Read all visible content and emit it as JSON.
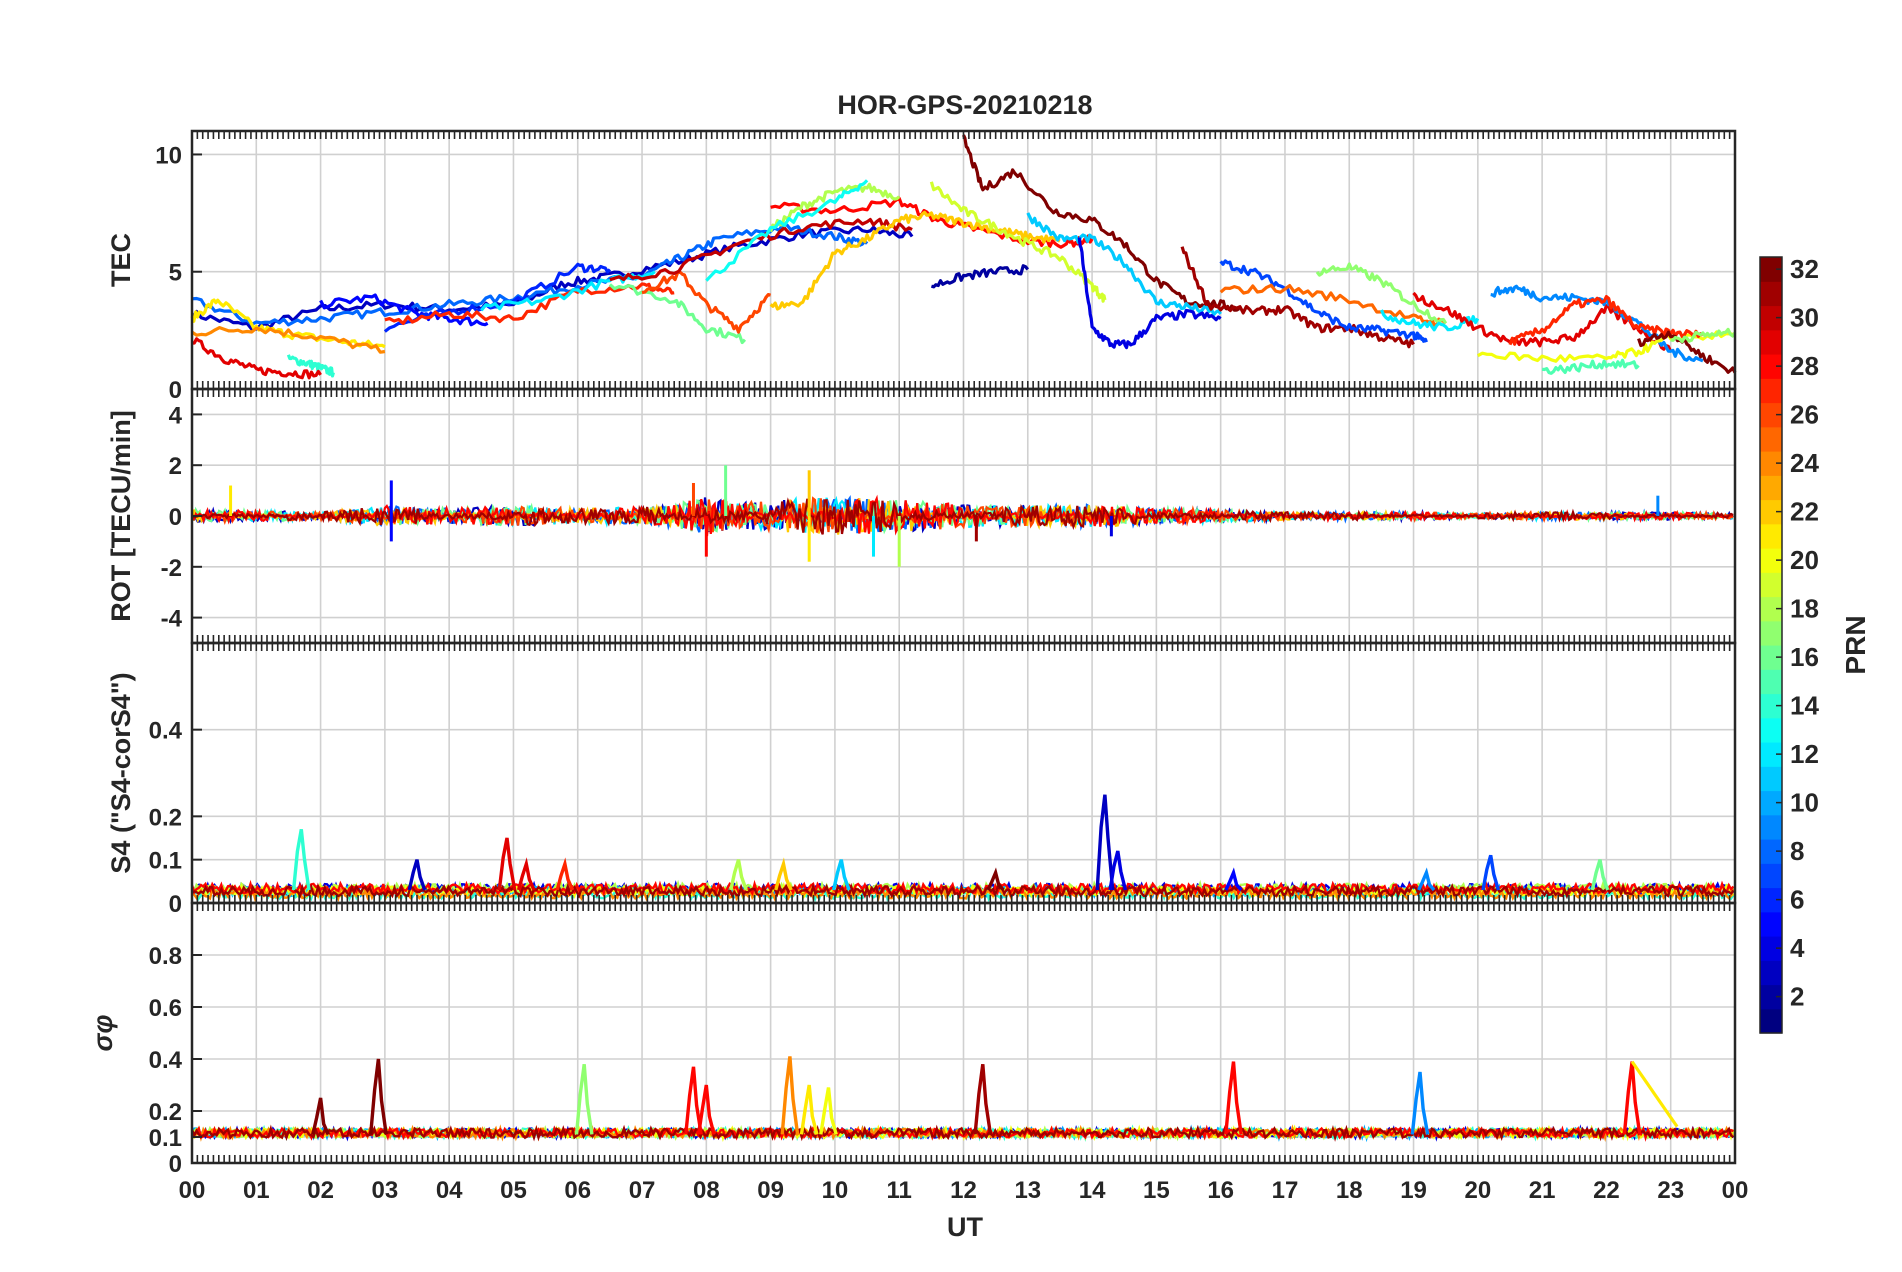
{
  "chart_data": {
    "type": "line",
    "title": "HOR-GPS-20210218",
    "xlabel": "UT",
    "x_ticks": [
      "00",
      "01",
      "02",
      "03",
      "04",
      "05",
      "06",
      "07",
      "08",
      "09",
      "10",
      "11",
      "12",
      "13",
      "14",
      "15",
      "16",
      "17",
      "18",
      "19",
      "20",
      "21",
      "22",
      "23",
      "00"
    ],
    "xlim": [
      0,
      24
    ],
    "grid": true,
    "colorbar": {
      "label": "PRN",
      "range": [
        1,
        32
      ],
      "ticks": [
        "2",
        "4",
        "6",
        "8",
        "10",
        "12",
        "14",
        "16",
        "18",
        "20",
        "22",
        "24",
        "26",
        "28",
        "30",
        "32"
      ],
      "colormap": "jet"
    },
    "panels": [
      {
        "id": "tec",
        "ylabel": "TEC",
        "ylim": [
          0,
          11
        ],
        "y_ticks": [
          "0",
          "5",
          "10"
        ],
        "series": [
          {
            "prn": 3,
            "x": [
              0,
              1,
              2,
              3,
              4,
              5,
              5.8,
              6.5,
              7.5,
              8.5,
              9.5,
              10.5,
              11.2
            ],
            "y": [
              3.2,
              2.6,
              3.4,
              3.6,
              3.4,
              3.6,
              4.5,
              4.8,
              5.4,
              6.1,
              6.6,
              6.8,
              6.5
            ]
          },
          {
            "prn": 8,
            "x": [
              0,
              1,
              2,
              3,
              4,
              5,
              6,
              7,
              7.6,
              8.2,
              9.2,
              10,
              10.5
            ],
            "y": [
              3.8,
              2.8,
              3.0,
              3.3,
              3.6,
              3.9,
              4.4,
              4.8,
              5.6,
              6.4,
              6.9,
              6.5,
              6.2
            ]
          },
          {
            "prn": 14,
            "x": [
              1.5,
              1.8,
              2.0,
              2.2
            ],
            "y": [
              1.3,
              1.1,
              0.9,
              0.7
            ]
          },
          {
            "prn": 29,
            "x": [
              0,
              0.5,
              1.0,
              1.5,
              2.0
            ],
            "y": [
              2.1,
              1.3,
              0.8,
              0.7,
              0.6
            ]
          },
          {
            "prn": 21,
            "x": [
              0,
              0.4,
              1.0,
              1.6,
              2.4,
              3.0
            ],
            "y": [
              3.0,
              3.8,
              2.6,
              2.3,
              2.0,
              1.8
            ]
          },
          {
            "prn": 24,
            "x": [
              0,
              1,
              2,
              3
            ],
            "y": [
              2.4,
              2.6,
              2.2,
              1.6
            ]
          },
          {
            "prn": 5,
            "x": [
              2.0,
              2.8,
              3.5,
              4.0,
              4.6
            ],
            "y": [
              3.6,
              3.9,
              3.2,
              3.0,
              2.8
            ]
          },
          {
            "prn": 6,
            "x": [
              3.0,
              4.0,
              5.0,
              6.0,
              6.5
            ],
            "y": [
              2.6,
              3.3,
              3.7,
              5.2,
              5.1
            ]
          },
          {
            "prn": 27,
            "x": [
              3.0,
              4.0,
              5.0,
              6.0,
              7.0,
              7.5
            ],
            "y": [
              2.8,
              3.2,
              3.0,
              4.2,
              4.4,
              4.1
            ]
          },
          {
            "prn": 12,
            "x": [
              4.5,
              5.5,
              6.5,
              7.2
            ],
            "y": [
              3.4,
              3.8,
              4.6,
              5.0
            ]
          },
          {
            "prn": 16,
            "x": [
              6.5,
              7.5,
              8.0,
              8.6
            ],
            "y": [
              4.5,
              3.8,
              2.6,
              2.1
            ]
          },
          {
            "prn": 26,
            "x": [
              7.0,
              7.6,
              8.0,
              8.5,
              9.0
            ],
            "y": [
              4.2,
              4.9,
              3.6,
              2.6,
              4.0
            ]
          },
          {
            "prn": 30,
            "x": [
              6.5,
              7.5,
              8.5,
              9.5,
              10.5,
              11.2
            ],
            "y": [
              4.6,
              5.1,
              6.2,
              6.9,
              7.2,
              6.8
            ]
          },
          {
            "prn": 28,
            "x": [
              9.0,
              10.0,
              11.0,
              11.6,
              12.2,
              13.0,
              13.6,
              14.0
            ],
            "y": [
              7.8,
              7.6,
              8.0,
              7.2,
              6.8,
              6.3,
              6.2,
              6.4
            ]
          },
          {
            "prn": 18,
            "x": [
              9.0,
              9.5,
              10.0,
              10.5,
              11.0
            ],
            "y": [
              6.8,
              7.8,
              8.4,
              8.6,
              8.2
            ]
          },
          {
            "prn": 13,
            "x": [
              8.0,
              9.0,
              10.0,
              10.5
            ],
            "y": [
              4.6,
              6.8,
              8.0,
              8.9
            ]
          },
          {
            "prn": 22,
            "x": [
              9.0,
              9.5,
              10.0,
              10.5,
              11.0,
              11.5,
              12.0,
              12.5,
              13.0,
              13.5
            ],
            "y": [
              3.5,
              3.7,
              5.8,
              6.4,
              7.2,
              7.4,
              7.1,
              6.8,
              6.5,
              6.3
            ]
          },
          {
            "prn": 19,
            "x": [
              11.5,
              12.0,
              12.5,
              13.0,
              13.5,
              14.0,
              14.2
            ],
            "y": [
              8.7,
              7.6,
              6.9,
              6.2,
              5.6,
              4.4,
              3.8
            ]
          },
          {
            "prn": 2,
            "x": [
              11.5,
              12.0,
              12.5,
              13.0
            ],
            "y": [
              4.4,
              4.8,
              5.0,
              5.1
            ]
          },
          {
            "prn": 32,
            "x": [
              12.0,
              12.3,
              12.8,
              13.4,
              14.0,
              14.5,
              15.0,
              15.5,
              16.0,
              16.3
            ],
            "y": [
              10.7,
              8.5,
              9.3,
              7.6,
              7.2,
              6.2,
              4.6,
              3.7,
              3.6,
              3.4
            ]
          },
          {
            "prn": 11,
            "x": [
              13.0,
              13.5,
              14.0,
              14.5,
              15.0,
              15.5,
              16.0
            ],
            "y": [
              7.4,
              6.4,
              6.4,
              5.4,
              3.7,
              3.5,
              3.2
            ]
          },
          {
            "prn": 4,
            "x": [
              13.8,
              14.0,
              14.3,
              14.6,
              15.0,
              15.5,
              16.0
            ],
            "y": [
              6.5,
              2.6,
              1.9,
              1.9,
              3.0,
              3.2,
              3.0
            ]
          },
          {
            "prn": 31,
            "x": [
              15.4,
              15.8,
              16.5,
              17.0,
              17.5,
              18.0,
              18.5,
              19.0
            ],
            "y": [
              6.0,
              3.6,
              3.3,
              3.4,
              2.6,
              2.6,
              2.2,
              1.9
            ]
          },
          {
            "prn": 7,
            "x": [
              16.0,
              16.5,
              17.0,
              17.5,
              18.0,
              18.5,
              19.0,
              19.2
            ],
            "y": [
              5.4,
              5.0,
              4.3,
              3.3,
              2.6,
              2.5,
              2.3,
              2.0
            ]
          },
          {
            "prn": 25,
            "x": [
              16.0,
              17.0,
              18.0,
              19.0,
              19.5
            ],
            "y": [
              4.2,
              4.3,
              3.8,
              3.0,
              2.8
            ]
          },
          {
            "prn": 17,
            "x": [
              17.5,
              18.0,
              18.5,
              19.0,
              19.5
            ],
            "y": [
              5.0,
              5.2,
              4.6,
              3.6,
              2.8
            ]
          },
          {
            "prn": 12,
            "x": [
              18.5,
              19.0,
              19.5,
              20.0
            ],
            "y": [
              3.2,
              2.8,
              2.6,
              3.0
            ]
          },
          {
            "prn": 29,
            "x": [
              19.0,
              19.5,
              20.0,
              20.5,
              21.0,
              21.5,
              22.0,
              22.5,
              23.0
            ],
            "y": [
              4.0,
              3.4,
              2.6,
              2.0,
              2.0,
              2.2,
              3.4,
              2.6,
              1.6
            ]
          },
          {
            "prn": 9,
            "x": [
              20.2,
              20.6,
              21.0,
              21.5,
              22.0,
              22.5,
              23.0,
              23.5
            ],
            "y": [
              4.1,
              4.3,
              3.9,
              3.9,
              3.7,
              2.8,
              1.6,
              1.2
            ]
          },
          {
            "prn": 15,
            "x": [
              21.0,
              21.5,
              22.0,
              22.5
            ],
            "y": [
              0.8,
              0.9,
              1.1,
              1.0
            ]
          },
          {
            "prn": 20,
            "x": [
              20.0,
              21.0,
              22.0,
              22.5,
              23.0,
              24.0
            ],
            "y": [
              1.5,
              1.3,
              1.3,
              1.6,
              2.2,
              2.3
            ]
          },
          {
            "prn": 27,
            "x": [
              20.5,
              21.0,
              21.5,
              22.0,
              22.5,
              23.0,
              23.5
            ],
            "y": [
              2.0,
              2.5,
              3.6,
              3.8,
              2.6,
              2.4,
              2.3
            ]
          },
          {
            "prn": 32,
            "x": [
              22.5,
              23.0,
              23.5,
              24.0
            ],
            "y": [
              2.0,
              2.4,
              1.4,
              0.7
            ]
          },
          {
            "prn": 17,
            "x": [
              23.0,
              23.5,
              24.0
            ],
            "y": [
              2.1,
              2.3,
              2.4
            ]
          }
        ]
      },
      {
        "id": "rot",
        "ylabel": "ROT [TECU/min]",
        "ylim": [
          -5,
          5
        ],
        "y_ticks": [
          "-4",
          "-2",
          "0",
          "2",
          "4"
        ],
        "noise_envelope": {
          "x": [
            0,
            2,
            3,
            4,
            5,
            6,
            7,
            7.5,
            8,
            8.5,
            9,
            10,
            11,
            12,
            13,
            14,
            15,
            16,
            17,
            18,
            19,
            20,
            21,
            22,
            23,
            24
          ],
          "amp": [
            0.5,
            0.3,
            0.8,
            0.6,
            0.8,
            0.6,
            0.7,
            0.9,
            1.6,
            1.0,
            1.2,
            1.5,
            1.3,
            0.9,
            0.8,
            0.9,
            0.6,
            0.5,
            0.3,
            0.3,
            0.3,
            0.2,
            0.3,
            0.3,
            0.3,
            0.2
          ]
        },
        "spikes": [
          {
            "x": 0.6,
            "y": 1.2,
            "prn": 21
          },
          {
            "x": 3.1,
            "y": 1.4,
            "prn": 5
          },
          {
            "x": 3.1,
            "y": -1.0,
            "prn": 5
          },
          {
            "x": 7.8,
            "y": 1.3,
            "prn": 26
          },
          {
            "x": 8.0,
            "y": -1.6,
            "prn": 28
          },
          {
            "x": 8.3,
            "y": 2.0,
            "prn": 16
          },
          {
            "x": 9.6,
            "y": 1.8,
            "prn": 22
          },
          {
            "x": 9.6,
            "y": -1.8,
            "prn": 21
          },
          {
            "x": 10.6,
            "y": -1.6,
            "prn": 12
          },
          {
            "x": 11.0,
            "y": -2.0,
            "prn": 18
          },
          {
            "x": 12.2,
            "y": -1.0,
            "prn": 31
          },
          {
            "x": 14.3,
            "y": -0.8,
            "prn": 4
          },
          {
            "x": 22.8,
            "y": 0.8,
            "prn": 9
          }
        ]
      },
      {
        "id": "s4",
        "ylabel": "S4 (\"S4-corS4\")",
        "ylim": [
          0,
          0.6
        ],
        "y_ticks": [
          "0",
          "0.1",
          "0.2",
          "0.4"
        ],
        "baseline": 0.03,
        "spikes": [
          {
            "x": 1.7,
            "y": 0.17,
            "prn": 14
          },
          {
            "x": 3.5,
            "y": 0.1,
            "prn": 3
          },
          {
            "x": 4.9,
            "y": 0.15,
            "prn": 29
          },
          {
            "x": 5.2,
            "y": 0.09,
            "prn": 29
          },
          {
            "x": 5.8,
            "y": 0.09,
            "prn": 27
          },
          {
            "x": 8.5,
            "y": 0.1,
            "prn": 18
          },
          {
            "x": 9.2,
            "y": 0.09,
            "prn": 22
          },
          {
            "x": 10.1,
            "y": 0.1,
            "prn": 11
          },
          {
            "x": 12.5,
            "y": 0.07,
            "prn": 32
          },
          {
            "x": 14.2,
            "y": 0.25,
            "prn": 3
          },
          {
            "x": 14.4,
            "y": 0.12,
            "prn": 4
          },
          {
            "x": 16.2,
            "y": 0.07,
            "prn": 5
          },
          {
            "x": 19.2,
            "y": 0.07,
            "prn": 9
          },
          {
            "x": 20.2,
            "y": 0.11,
            "prn": 7
          },
          {
            "x": 21.9,
            "y": 0.1,
            "prn": 16
          }
        ]
      },
      {
        "id": "sigma",
        "ylabel": "σφ",
        "ylim": [
          0,
          1
        ],
        "y_ticks": [
          "0",
          "0.1",
          "0.2",
          "0.4",
          "0.6",
          "0.8"
        ],
        "baseline": 0.11,
        "spikes": [
          {
            "x": 2.0,
            "y": 0.25,
            "prn": 32
          },
          {
            "x": 2.9,
            "y": 0.4,
            "prn": 32
          },
          {
            "x": 6.1,
            "y": 0.38,
            "prn": 17
          },
          {
            "x": 7.8,
            "y": 0.37,
            "prn": 28
          },
          {
            "x": 8.0,
            "y": 0.3,
            "prn": 28
          },
          {
            "x": 9.3,
            "y": 0.41,
            "prn": 24
          },
          {
            "x": 9.6,
            "y": 0.3,
            "prn": 21
          },
          {
            "x": 9.9,
            "y": 0.29,
            "prn": 20
          },
          {
            "x": 12.3,
            "y": 0.38,
            "prn": 31
          },
          {
            "x": 16.2,
            "y": 0.39,
            "prn": 28
          },
          {
            "x": 19.1,
            "y": 0.35,
            "prn": 9
          },
          {
            "x": 22.4,
            "y": 0.39,
            "prn": 28
          }
        ],
        "segments": [
          {
            "x": [
              22.4,
              23.1
            ],
            "y": [
              0.39,
              0.14
            ],
            "prn": 21
          }
        ]
      }
    ]
  }
}
